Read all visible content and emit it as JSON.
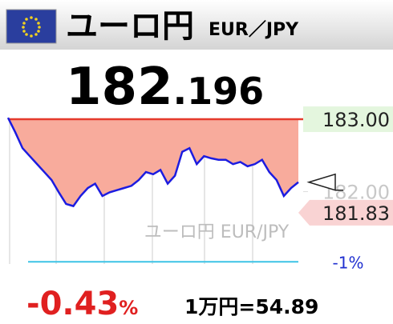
{
  "header": {
    "title": "ユーロ円",
    "pair": "EUR／JPY"
  },
  "price": {
    "integer": "182",
    "decimal": ".196"
  },
  "chart_data": {
    "type": "line",
    "color": "#1c1ce0",
    "fill_color": "#f8ab9c",
    "values": [
      183.02,
      182.82,
      182.6,
      182.49,
      182.38,
      182.27,
      182.16,
      181.99,
      181.83,
      181.8,
      181.94,
      182.05,
      182.11,
      181.94,
      181.99,
      182.02,
      182.05,
      182.08,
      182.16,
      182.27,
      182.24,
      182.3,
      182.11,
      182.22,
      182.55,
      182.6,
      182.38,
      182.49,
      182.46,
      182.44,
      182.44,
      182.38,
      182.41,
      182.35,
      182.38,
      182.44,
      182.27,
      182.16,
      181.94,
      182.05,
      182.13
    ],
    "ylim": [
      181.0,
      183.1
    ],
    "yticks": [
      {
        "value": 183,
        "label": "183.00"
      },
      {
        "value": 182,
        "label": "182.00"
      }
    ],
    "low": 181.83,
    "ref_lines": [
      {
        "value": 183.0,
        "color": "#e53a2c"
      },
      {
        "value": 181.03,
        "label": "-1%",
        "color": "#3cc3e6"
      }
    ],
    "watermark": "ユーロ円 EUR/JPY"
  },
  "footer": {
    "change": "-0.43",
    "change_unit": "%",
    "conversion": "1万円=54.89"
  }
}
